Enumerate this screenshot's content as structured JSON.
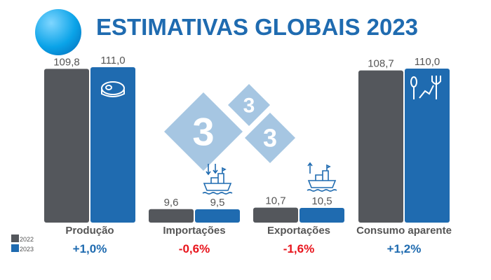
{
  "title": "ESTIMATIVAS GLOBAIS 2023",
  "colors": {
    "2022": "#54575c",
    "2023": "#1f6bb0",
    "positive": "#1f6bb0",
    "negative": "#e8141c",
    "watermark": "#a6c6e2"
  },
  "watermark": [
    "3",
    "3",
    "3"
  ],
  "chart_data": {
    "type": "bar",
    "categories": [
      "Produção",
      "Importações",
      "Exportações",
      "Consumo aparente"
    ],
    "series": [
      {
        "name": "2022",
        "values": [
          109.8,
          9.6,
          10.7,
          108.7
        ],
        "labels": [
          "109,8",
          "9,6",
          "10,7",
          "108,7"
        ]
      },
      {
        "name": "2023",
        "values": [
          111.0,
          9.5,
          10.5,
          110.0
        ],
        "labels": [
          "111,0",
          "9,5",
          "10,5",
          "110,0"
        ]
      }
    ],
    "changes": [
      "+1,0%",
      "-0,6%",
      "-1,6%",
      "+1,2%"
    ],
    "icons": [
      "meat-steak-icon",
      "import-ship-icon",
      "export-ship-icon",
      "consumption-cutlery-icon"
    ],
    "legend": [
      "2022",
      "2023"
    ],
    "legend_position": "bottom-left",
    "ylim": [
      0,
      115
    ],
    "grid": false
  }
}
